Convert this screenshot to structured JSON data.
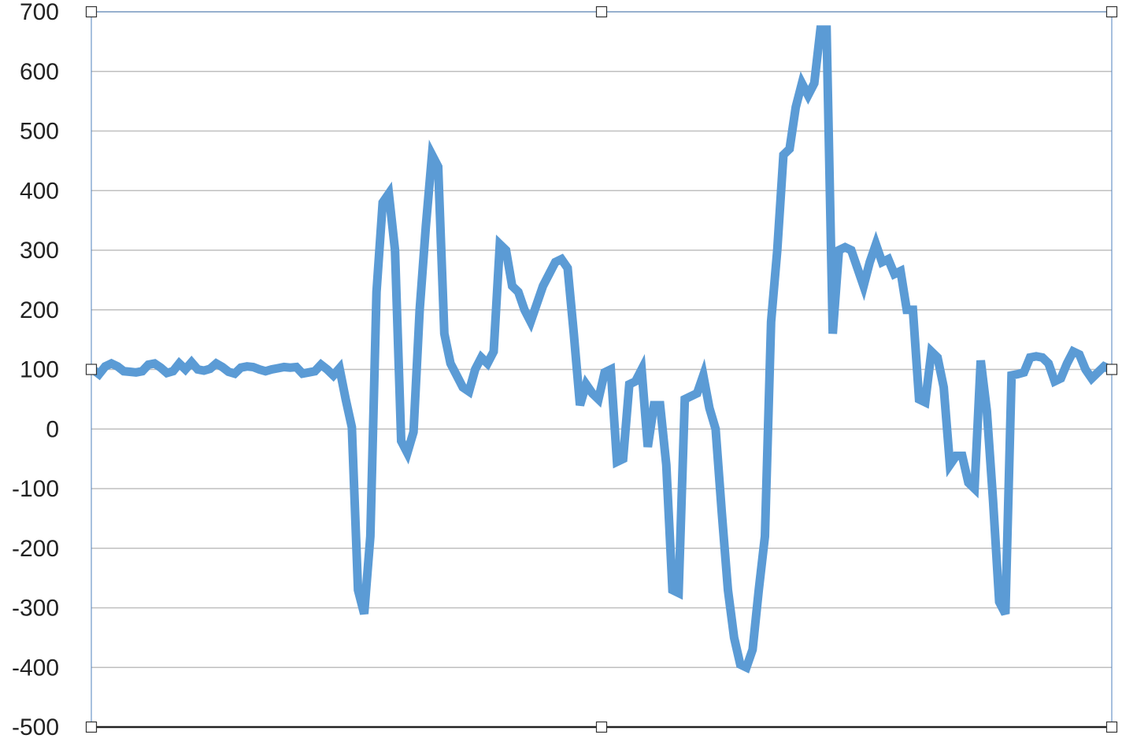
{
  "chart_data": {
    "type": "line",
    "title": "",
    "xlabel": "",
    "ylabel": "",
    "ylim": [
      -500,
      700
    ],
    "y_ticks": [
      700,
      600,
      500,
      400,
      300,
      200,
      100,
      0,
      -100,
      -200,
      -300,
      -400,
      -500
    ],
    "y_tick_labels": [
      "700",
      "600",
      "500",
      "400",
      "300",
      "200",
      "100",
      "0",
      "-100",
      "-200",
      "-300",
      "-400",
      "-500"
    ],
    "grid": true,
    "legend": "none",
    "line_color": "#5b9bd5",
    "series": [
      {
        "values": [
          100,
          92,
          105,
          110,
          105,
          97,
          96,
          95,
          97,
          108,
          110,
          103,
          94,
          97,
          110,
          100,
          112,
          100,
          98,
          101,
          110,
          104,
          96,
          93,
          103,
          105,
          104,
          100,
          97,
          100,
          102,
          104,
          103,
          104,
          93,
          95,
          97,
          108,
          100,
          90,
          102,
          50,
          3,
          -270,
          -310,
          -180,
          230,
          380,
          395,
          300,
          -20,
          -40,
          -5,
          200,
          340,
          460,
          440,
          160,
          110,
          90,
          70,
          63,
          100,
          120,
          110,
          130,
          310,
          300,
          240,
          230,
          200,
          180,
          210,
          240,
          260,
          280,
          285,
          270,
          160,
          40,
          75,
          60,
          50,
          95,
          100,
          -55,
          -50,
          75,
          80,
          100,
          -30,
          40,
          40,
          -60,
          -270,
          -275,
          50,
          55,
          60,
          90,
          35,
          0,
          -140,
          -270,
          -350,
          -395,
          -400,
          -370,
          -270,
          -180,
          180,
          300,
          460,
          470,
          540,
          580,
          560,
          580,
          670,
          670,
          160,
          300,
          305,
          300,
          270,
          240,
          280,
          310,
          280,
          285,
          260,
          265,
          200,
          200,
          50,
          45,
          130,
          120,
          70,
          -60,
          -45,
          -45,
          -90,
          -100,
          115,
          30,
          -120,
          -290,
          -310,
          90,
          92,
          95,
          120,
          122,
          120,
          110,
          80,
          85,
          110,
          130,
          125,
          100,
          85,
          95,
          105,
          100
        ]
      }
    ]
  }
}
